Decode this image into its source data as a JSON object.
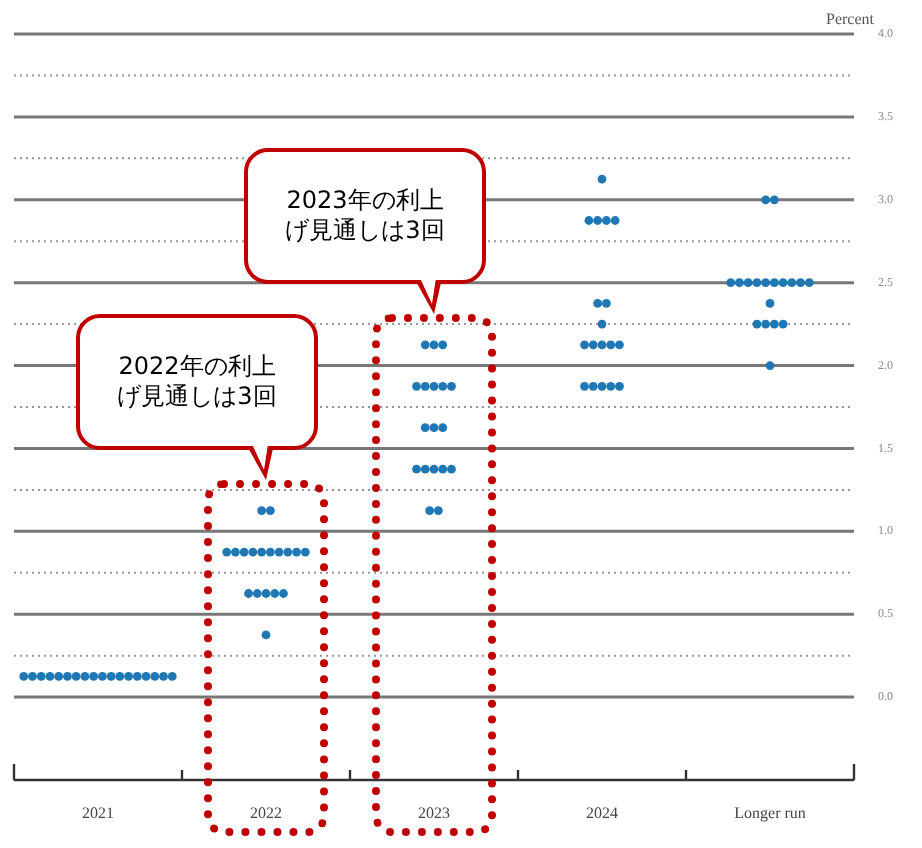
{
  "chart_data": {
    "type": "scatter",
    "ylabel": "Percent",
    "categories": [
      "2021",
      "2022",
      "2023",
      "2024",
      "Longer run"
    ],
    "series": [
      {
        "color": "#1f77b4",
        "values": [
          0.125,
          1.125,
          2.125,
          3.125,
          3.0
        ]
      },
      {
        "color": "#1f77b4",
        "values": [
          0.125,
          1.125,
          2.125,
          2.875,
          3.0
        ]
      },
      {
        "color": "#1f77b4",
        "values": [
          0.125,
          0.875,
          2.125,
          2.875,
          2.5
        ]
      },
      {
        "color": "#1f77b4",
        "values": [
          0.125,
          0.875,
          1.875,
          2.875,
          2.5
        ]
      },
      {
        "color": "#1f77b4",
        "values": [
          0.125,
          0.875,
          1.875,
          2.875,
          2.5
        ]
      },
      {
        "color": "#1f77b4",
        "values": [
          0.125,
          0.875,
          1.875,
          2.375,
          2.5
        ]
      },
      {
        "color": "#1f77b4",
        "values": [
          0.125,
          0.875,
          1.875,
          2.375,
          2.5
        ]
      },
      {
        "color": "#1f77b4",
        "values": [
          0.125,
          0.875,
          1.875,
          2.25,
          2.5
        ]
      },
      {
        "color": "#1f77b4",
        "values": [
          0.125,
          0.875,
          1.625,
          2.125,
          2.5
        ]
      },
      {
        "color": "#1f77b4",
        "values": [
          0.125,
          0.875,
          1.625,
          2.125,
          2.5
        ]
      },
      {
        "color": "#1f77b4",
        "values": [
          0.125,
          0.875,
          1.625,
          2.125,
          2.5
        ]
      },
      {
        "color": "#1f77b4",
        "values": [
          0.125,
          0.875,
          1.375,
          2.125,
          2.5
        ]
      },
      {
        "color": "#1f77b4",
        "values": [
          0.125,
          0.625,
          1.375,
          2.125,
          2.375
        ]
      },
      {
        "color": "#1f77b4",
        "values": [
          0.125,
          0.625,
          1.375,
          1.875,
          2.25
        ]
      },
      {
        "color": "#1f77b4",
        "values": [
          0.125,
          0.625,
          1.375,
          1.875,
          2.25
        ]
      },
      {
        "color": "#1f77b4",
        "values": [
          0.125,
          0.625,
          1.375,
          1.875,
          2.25
        ]
      },
      {
        "color": "#1f77b4",
        "values": [
          0.125,
          0.625,
          1.125,
          1.875,
          2.25
        ]
      },
      {
        "color": "#1f77b4",
        "values": [
          0.125,
          0.375,
          1.125,
          1.875,
          2.0
        ]
      }
    ],
    "ylim": [
      -0.5,
      4.0
    ],
    "yticks": [
      {
        "value": 0,
        "label": "0.0"
      },
      {
        "value": 0.25,
        "label": null
      },
      {
        "value": 0.5,
        "label": "0.5"
      },
      {
        "value": 0.75,
        "label": null
      },
      {
        "value": 1,
        "label": "1.0"
      },
      {
        "value": 1.25,
        "label": null
      },
      {
        "value": 1.5,
        "label": "1.5"
      },
      {
        "value": 1.75,
        "label": null
      },
      {
        "value": 2,
        "label": "2.0"
      },
      {
        "value": 2.25,
        "label": null
      },
      {
        "value": 2.5,
        "label": "2.5"
      },
      {
        "value": 2.75,
        "label": null
      },
      {
        "value": 3,
        "label": "3.0"
      },
      {
        "value": 3.25,
        "label": null
      },
      {
        "value": 3.5,
        "label": "3.5"
      },
      {
        "value": 3.75,
        "label": null
      },
      {
        "value": 4,
        "label": "4.0"
      }
    ],
    "grid": "y",
    "legend": false,
    "marker": "circle",
    "annotations": [
      "2022年の利上げ見通しは3回",
      "2023年の利上げ見通しは3回"
    ]
  }
}
